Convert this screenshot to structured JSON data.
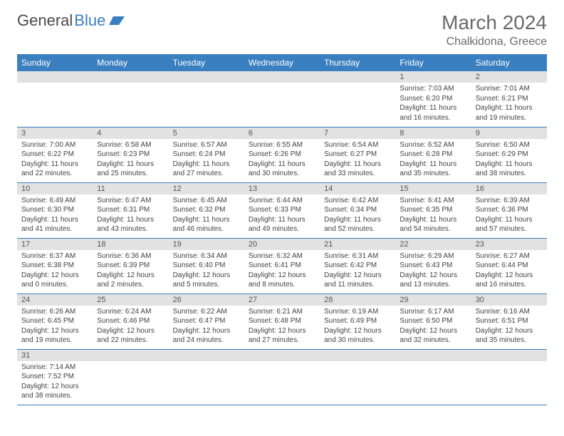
{
  "logo": {
    "text1": "General",
    "text2": "Blue"
  },
  "header": {
    "month": "March 2024",
    "location": "Chalkidona, Greece"
  },
  "colors": {
    "header_bg": "#3a7fbf",
    "header_text": "#ffffff",
    "daynum_bg": "#e2e2e2",
    "border": "#3a7fbf",
    "title_text": "#6a6a6a"
  },
  "layout": {
    "columns": 7,
    "rows": 6
  },
  "weekdays": [
    "Sunday",
    "Monday",
    "Tuesday",
    "Wednesday",
    "Thursday",
    "Friday",
    "Saturday"
  ],
  "cells": [
    {
      "empty": true
    },
    {
      "empty": true
    },
    {
      "empty": true
    },
    {
      "empty": true
    },
    {
      "empty": true
    },
    {
      "day": "1",
      "sunrise": "Sunrise: 7:03 AM",
      "sunset": "Sunset: 6:20 PM",
      "daylight": "Daylight: 11 hours and 16 minutes."
    },
    {
      "day": "2",
      "sunrise": "Sunrise: 7:01 AM",
      "sunset": "Sunset: 6:21 PM",
      "daylight": "Daylight: 11 hours and 19 minutes."
    },
    {
      "day": "3",
      "sunrise": "Sunrise: 7:00 AM",
      "sunset": "Sunset: 6:22 PM",
      "daylight": "Daylight: 11 hours and 22 minutes."
    },
    {
      "day": "4",
      "sunrise": "Sunrise: 6:58 AM",
      "sunset": "Sunset: 6:23 PM",
      "daylight": "Daylight: 11 hours and 25 minutes."
    },
    {
      "day": "5",
      "sunrise": "Sunrise: 6:57 AM",
      "sunset": "Sunset: 6:24 PM",
      "daylight": "Daylight: 11 hours and 27 minutes."
    },
    {
      "day": "6",
      "sunrise": "Sunrise: 6:55 AM",
      "sunset": "Sunset: 6:26 PM",
      "daylight": "Daylight: 11 hours and 30 minutes."
    },
    {
      "day": "7",
      "sunrise": "Sunrise: 6:54 AM",
      "sunset": "Sunset: 6:27 PM",
      "daylight": "Daylight: 11 hours and 33 minutes."
    },
    {
      "day": "8",
      "sunrise": "Sunrise: 6:52 AM",
      "sunset": "Sunset: 6:28 PM",
      "daylight": "Daylight: 11 hours and 35 minutes."
    },
    {
      "day": "9",
      "sunrise": "Sunrise: 6:50 AM",
      "sunset": "Sunset: 6:29 PM",
      "daylight": "Daylight: 11 hours and 38 minutes."
    },
    {
      "day": "10",
      "sunrise": "Sunrise: 6:49 AM",
      "sunset": "Sunset: 6:30 PM",
      "daylight": "Daylight: 11 hours and 41 minutes."
    },
    {
      "day": "11",
      "sunrise": "Sunrise: 6:47 AM",
      "sunset": "Sunset: 6:31 PM",
      "daylight": "Daylight: 11 hours and 43 minutes."
    },
    {
      "day": "12",
      "sunrise": "Sunrise: 6:45 AM",
      "sunset": "Sunset: 6:32 PM",
      "daylight": "Daylight: 11 hours and 46 minutes."
    },
    {
      "day": "13",
      "sunrise": "Sunrise: 6:44 AM",
      "sunset": "Sunset: 6:33 PM",
      "daylight": "Daylight: 11 hours and 49 minutes."
    },
    {
      "day": "14",
      "sunrise": "Sunrise: 6:42 AM",
      "sunset": "Sunset: 6:34 PM",
      "daylight": "Daylight: 11 hours and 52 minutes."
    },
    {
      "day": "15",
      "sunrise": "Sunrise: 6:41 AM",
      "sunset": "Sunset: 6:35 PM",
      "daylight": "Daylight: 11 hours and 54 minutes."
    },
    {
      "day": "16",
      "sunrise": "Sunrise: 6:39 AM",
      "sunset": "Sunset: 6:36 PM",
      "daylight": "Daylight: 11 hours and 57 minutes."
    },
    {
      "day": "17",
      "sunrise": "Sunrise: 6:37 AM",
      "sunset": "Sunset: 6:38 PM",
      "daylight": "Daylight: 12 hours and 0 minutes."
    },
    {
      "day": "18",
      "sunrise": "Sunrise: 6:36 AM",
      "sunset": "Sunset: 6:39 PM",
      "daylight": "Daylight: 12 hours and 2 minutes."
    },
    {
      "day": "19",
      "sunrise": "Sunrise: 6:34 AM",
      "sunset": "Sunset: 6:40 PM",
      "daylight": "Daylight: 12 hours and 5 minutes."
    },
    {
      "day": "20",
      "sunrise": "Sunrise: 6:32 AM",
      "sunset": "Sunset: 6:41 PM",
      "daylight": "Daylight: 12 hours and 8 minutes."
    },
    {
      "day": "21",
      "sunrise": "Sunrise: 6:31 AM",
      "sunset": "Sunset: 6:42 PM",
      "daylight": "Daylight: 12 hours and 11 minutes."
    },
    {
      "day": "22",
      "sunrise": "Sunrise: 6:29 AM",
      "sunset": "Sunset: 6:43 PM",
      "daylight": "Daylight: 12 hours and 13 minutes."
    },
    {
      "day": "23",
      "sunrise": "Sunrise: 6:27 AM",
      "sunset": "Sunset: 6:44 PM",
      "daylight": "Daylight: 12 hours and 16 minutes."
    },
    {
      "day": "24",
      "sunrise": "Sunrise: 6:26 AM",
      "sunset": "Sunset: 6:45 PM",
      "daylight": "Daylight: 12 hours and 19 minutes."
    },
    {
      "day": "25",
      "sunrise": "Sunrise: 6:24 AM",
      "sunset": "Sunset: 6:46 PM",
      "daylight": "Daylight: 12 hours and 22 minutes."
    },
    {
      "day": "26",
      "sunrise": "Sunrise: 6:22 AM",
      "sunset": "Sunset: 6:47 PM",
      "daylight": "Daylight: 12 hours and 24 minutes."
    },
    {
      "day": "27",
      "sunrise": "Sunrise: 6:21 AM",
      "sunset": "Sunset: 6:48 PM",
      "daylight": "Daylight: 12 hours and 27 minutes."
    },
    {
      "day": "28",
      "sunrise": "Sunrise: 6:19 AM",
      "sunset": "Sunset: 6:49 PM",
      "daylight": "Daylight: 12 hours and 30 minutes."
    },
    {
      "day": "29",
      "sunrise": "Sunrise: 6:17 AM",
      "sunset": "Sunset: 6:50 PM",
      "daylight": "Daylight: 12 hours and 32 minutes."
    },
    {
      "day": "30",
      "sunrise": "Sunrise: 6:16 AM",
      "sunset": "Sunset: 6:51 PM",
      "daylight": "Daylight: 12 hours and 35 minutes."
    },
    {
      "day": "31",
      "sunrise": "Sunrise: 7:14 AM",
      "sunset": "Sunset: 7:52 PM",
      "daylight": "Daylight: 12 hours and 38 minutes."
    },
    {
      "empty": true
    },
    {
      "empty": true
    },
    {
      "empty": true
    },
    {
      "empty": true
    },
    {
      "empty": true
    },
    {
      "empty": true
    }
  ]
}
